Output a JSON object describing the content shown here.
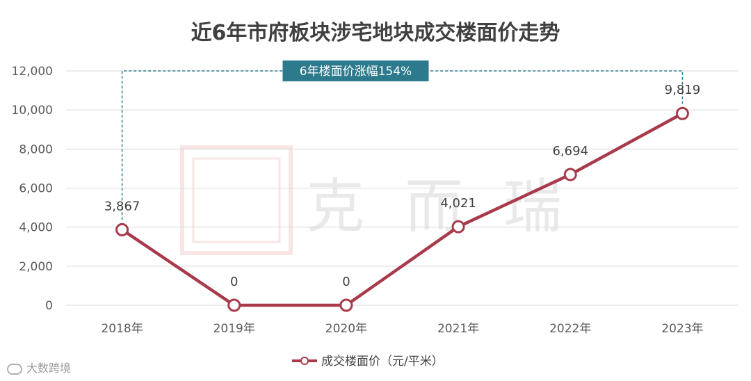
{
  "title": "近6年市府板块涉宅地块成交楼面价走势",
  "chart_data": {
    "type": "line",
    "title": "近6年市府板块涉宅地块成交楼面价走势",
    "categories": [
      "2018年",
      "2019年",
      "2020年",
      "2021年",
      "2022年",
      "2023年"
    ],
    "series": [
      {
        "name": "成交楼面价（元/平米）",
        "values": [
          3867,
          0,
          0,
          4021,
          6694,
          9819
        ]
      }
    ],
    "data_labels": [
      "3,867",
      "0",
      "0",
      "4,021",
      "6,694",
      "9,819"
    ],
    "y_ticks": [
      "0",
      "2,000",
      "4,000",
      "6,000",
      "8,000",
      "10,000",
      "12,000"
    ],
    "ylim": [
      0,
      12000
    ],
    "grid": true,
    "legend": "bottom",
    "annotation": "6年楼面价涨幅154%",
    "colors": {
      "line": "#a93a4b",
      "annotation_bg": "#2d7a8c",
      "annotation_line": "#2d7a8c",
      "grid": "#d9d9d9"
    }
  },
  "watermark": "克而瑞",
  "footer": "大数跨境"
}
